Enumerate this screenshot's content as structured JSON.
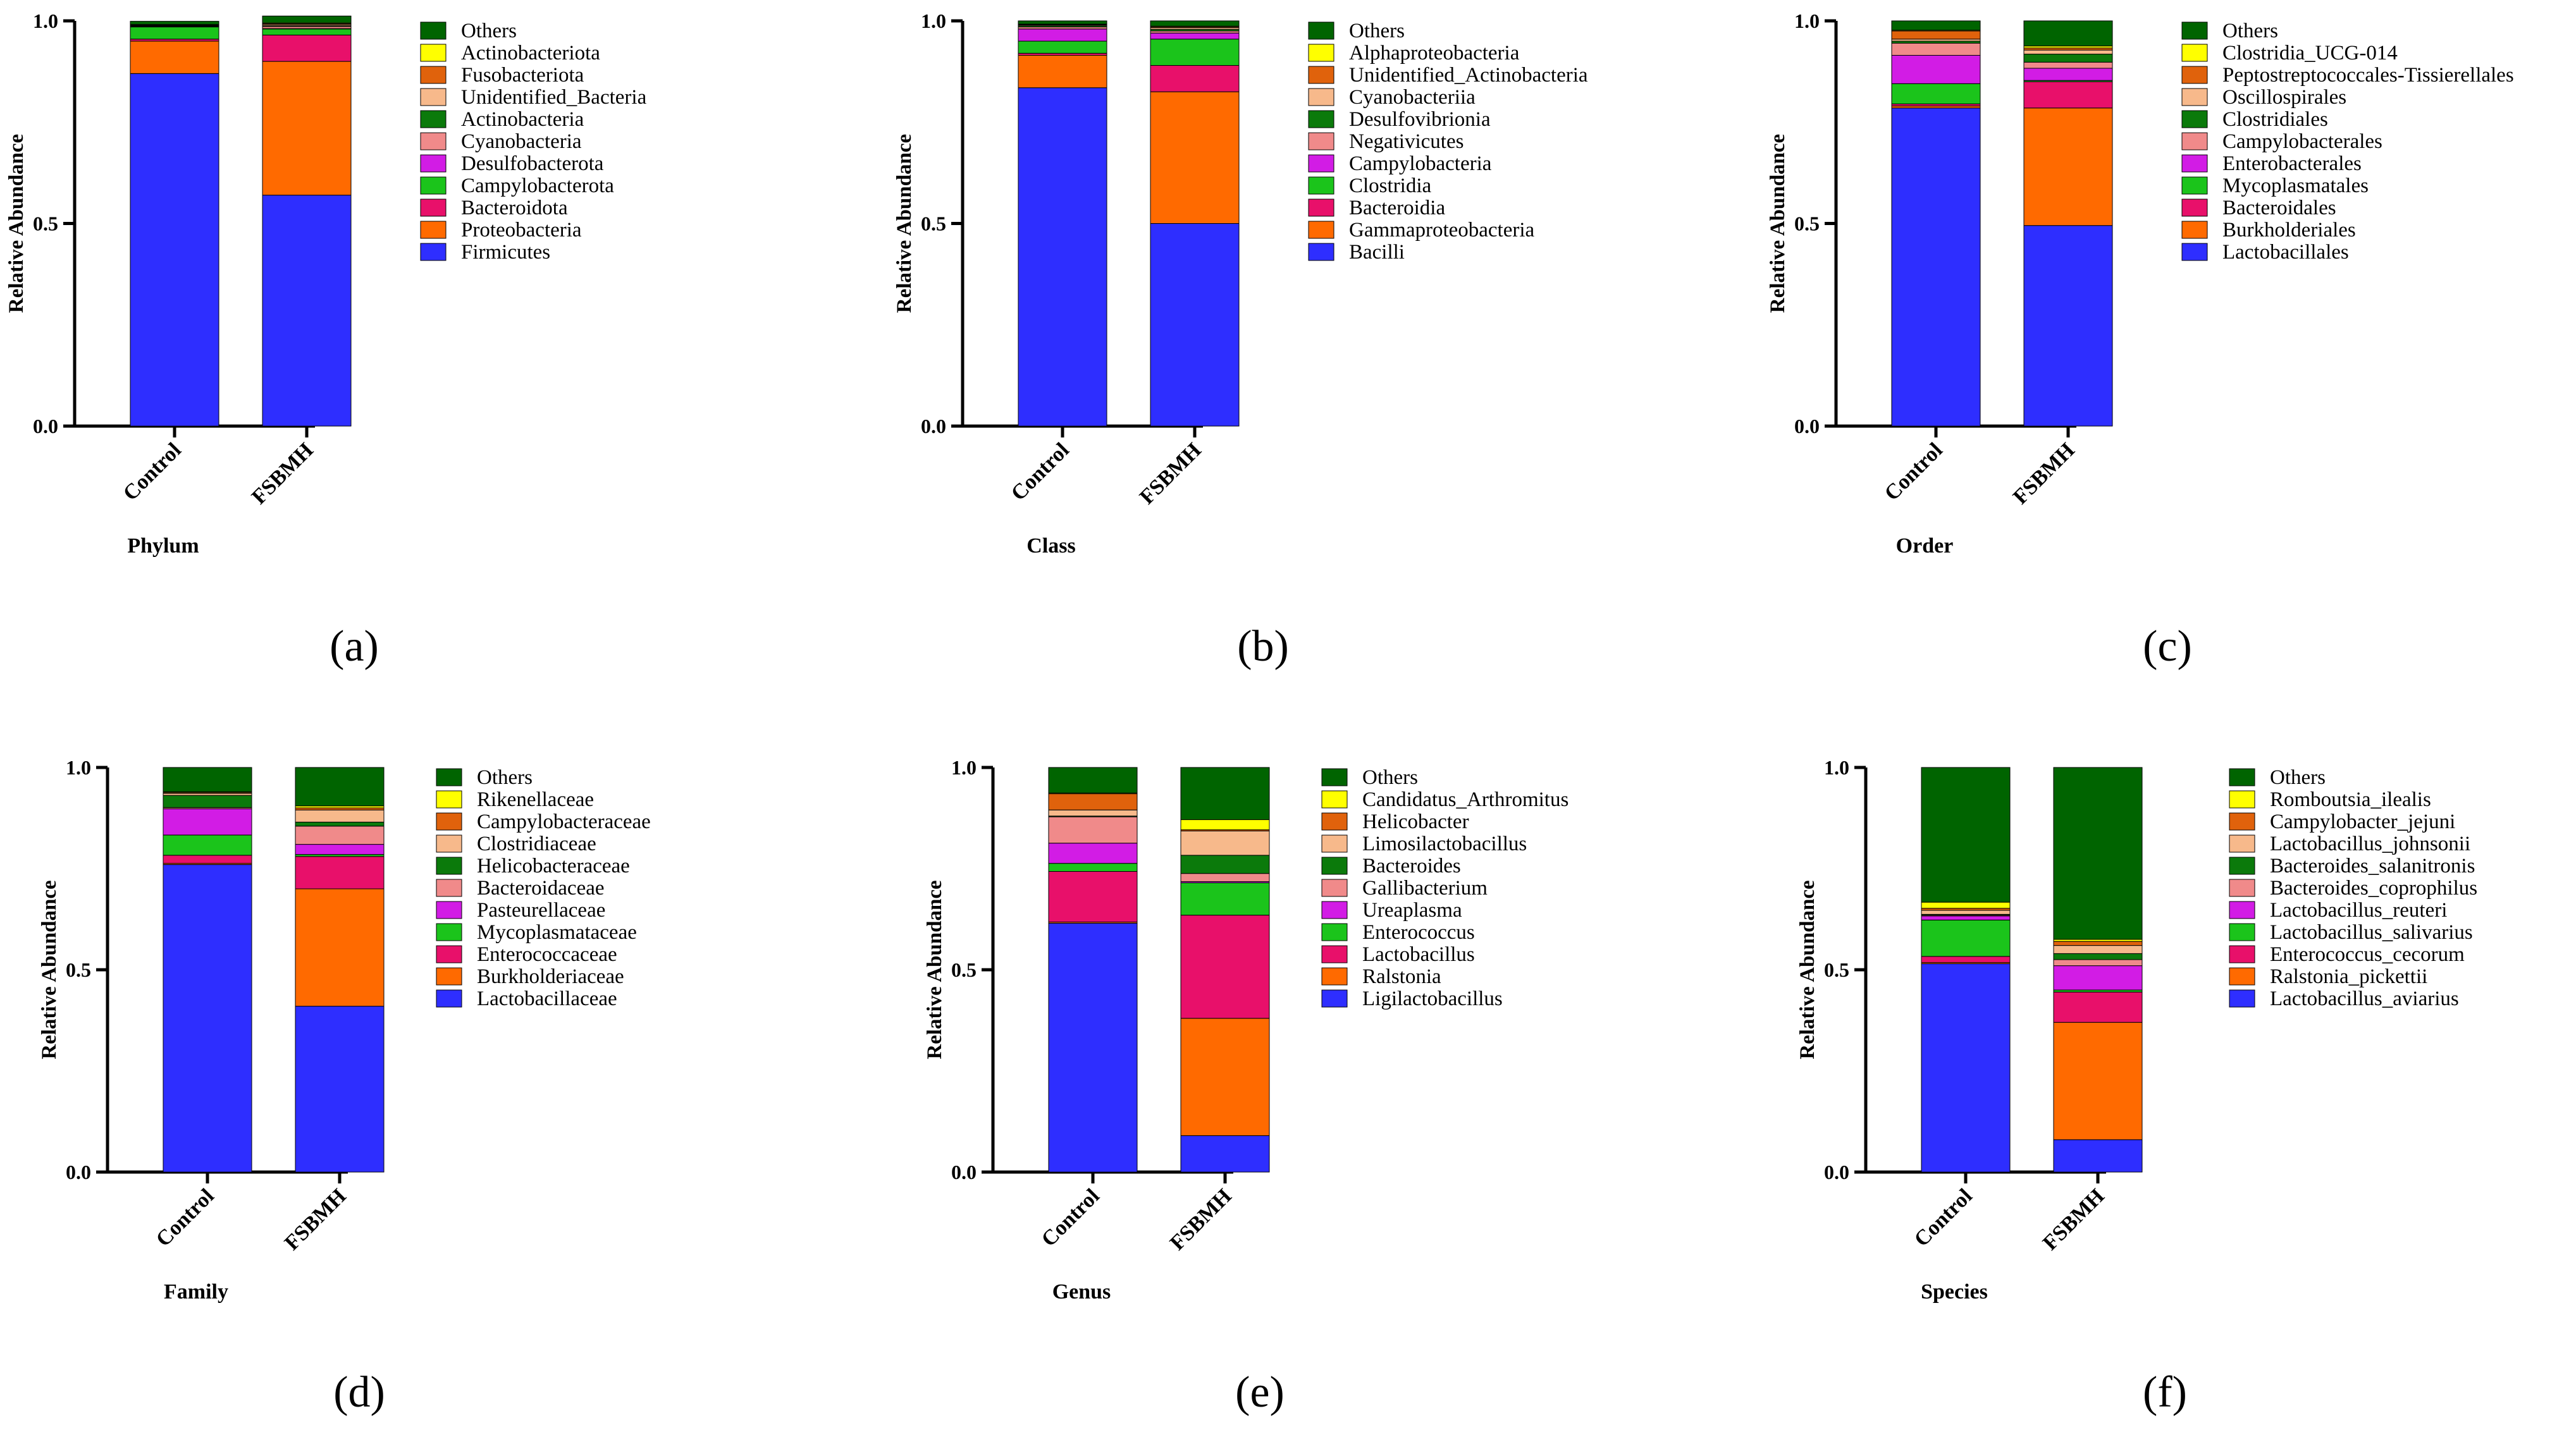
{
  "colors": {
    "Others": "#006400",
    "c10": "#FFFF00",
    "c9": "#E0620C",
    "c8": "#F7B98B",
    "c7": "#0B7A0B",
    "c6": "#F08A8A",
    "c5": "#D21CE5",
    "c4": "#1BC41B",
    "c3": "#E8106A",
    "c2": "#FF6A00",
    "c1": "#2E2EFF"
  },
  "y_ticks": [
    "0.0",
    "0.5",
    "1.0"
  ],
  "ylabel": "Relative Abundance",
  "chart_data": [
    {
      "type": "bar",
      "stacked": true,
      "panel_label": "(a)",
      "xlabel": "Phylum",
      "categories": [
        "Control",
        "FSBMH"
      ],
      "ylim": [
        0,
        1
      ],
      "series": [
        {
          "name": "Firmicutes",
          "values": [
            0.87,
            0.57
          ]
        },
        {
          "name": "Proteobacteria",
          "values": [
            0.08,
            0.33
          ]
        },
        {
          "name": "Bacteroidota",
          "values": [
            0.005,
            0.065
          ]
        },
        {
          "name": "Campylobacterota",
          "values": [
            0.03,
            0.015
          ]
        },
        {
          "name": "Desulfobacterota",
          "values": [
            0.001,
            0.001
          ]
        },
        {
          "name": "Cyanobacteria",
          "values": [
            0.001,
            0.005
          ]
        },
        {
          "name": "Actinobacteria",
          "values": [
            0.001,
            0.002
          ]
        },
        {
          "name": "Unidentified_Bacteria",
          "values": [
            0.001,
            0.003
          ]
        },
        {
          "name": "Fusobacteriota",
          "values": [
            0.001,
            0.002
          ]
        },
        {
          "name": "Actinobacteriota",
          "values": [
            0.001,
            0.002
          ]
        },
        {
          "name": "Others",
          "values": [
            0.008,
            0.017
          ]
        }
      ]
    },
    {
      "type": "bar",
      "stacked": true,
      "panel_label": "(b)",
      "xlabel": "Class",
      "categories": [
        "Control",
        "FSBMH"
      ],
      "ylim": [
        0,
        1
      ],
      "series": [
        {
          "name": "Bacilli",
          "values": [
            0.835,
            0.5
          ]
        },
        {
          "name": "Gammaproteobacteria",
          "values": [
            0.08,
            0.325
          ]
        },
        {
          "name": "Bacteroidia",
          "values": [
            0.005,
            0.065
          ]
        },
        {
          "name": "Clostridia",
          "values": [
            0.03,
            0.065
          ]
        },
        {
          "name": "Campylobacteria",
          "values": [
            0.03,
            0.015
          ]
        },
        {
          "name": "Negativicutes",
          "values": [
            0.005,
            0.005
          ]
        },
        {
          "name": "Desulfovibrionia",
          "values": [
            0.003,
            0.004
          ]
        },
        {
          "name": "Cyanobacteriia",
          "values": [
            0.002,
            0.004
          ]
        },
        {
          "name": "Unidentified_Actinobacteria",
          "values": [
            0.001,
            0.002
          ]
        },
        {
          "name": "Alphaproteobacteria",
          "values": [
            0.001,
            0.002
          ]
        },
        {
          "name": "Others",
          "values": [
            0.008,
            0.013
          ]
        }
      ]
    },
    {
      "type": "bar",
      "stacked": true,
      "panel_label": "(c)",
      "xlabel": "Order",
      "categories": [
        "Control",
        "FSBMH"
      ],
      "ylim": [
        0,
        1
      ],
      "series": [
        {
          "name": "Lactobacillales",
          "values": [
            0.785,
            0.495
          ]
        },
        {
          "name": "Burkholderiales",
          "values": [
            0.005,
            0.29
          ]
        },
        {
          "name": "Bacteroidales",
          "values": [
            0.005,
            0.065
          ]
        },
        {
          "name": "Mycoplasmatales",
          "values": [
            0.05,
            0.003
          ]
        },
        {
          "name": "Enterobacterales",
          "values": [
            0.07,
            0.03
          ]
        },
        {
          "name": "Campylobacterales",
          "values": [
            0.03,
            0.015
          ]
        },
        {
          "name": "Clostridiales",
          "values": [
            0.005,
            0.02
          ]
        },
        {
          "name": "Oscillospirales",
          "values": [
            0.005,
            0.01
          ]
        },
        {
          "name": "Peptostreptococcales-Tissierellales",
          "values": [
            0.02,
            0.005
          ]
        },
        {
          "name": "Clostridia_UCG-014",
          "values": [
            0.002,
            0.005
          ]
        },
        {
          "name": "Others",
          "values": [
            0.023,
            0.062
          ]
        }
      ]
    },
    {
      "type": "bar",
      "stacked": true,
      "panel_label": "(d)",
      "xlabel": "Family",
      "categories": [
        "Control",
        "FSBMH"
      ],
      "ylim": [
        0,
        1
      ],
      "series": [
        {
          "name": "Lactobacillaceae",
          "values": [
            0.76,
            0.41
          ]
        },
        {
          "name": "Burkholderiaceae",
          "values": [
            0.003,
            0.29
          ]
        },
        {
          "name": "Enterococcaceae",
          "values": [
            0.02,
            0.08
          ]
        },
        {
          "name": "Mycoplasmataceae",
          "values": [
            0.05,
            0.005
          ]
        },
        {
          "name": "Pasteurellaceae",
          "values": [
            0.065,
            0.025
          ]
        },
        {
          "name": "Bacteroidaceae",
          "values": [
            0.003,
            0.045
          ]
        },
        {
          "name": "Helicobacteraceae",
          "values": [
            0.03,
            0.01
          ]
        },
        {
          "name": "Clostridiaceae",
          "values": [
            0.005,
            0.03
          ]
        },
        {
          "name": "Campylobacteraceae",
          "values": [
            0.002,
            0.005
          ]
        },
        {
          "name": "Rikenellaceae",
          "values": [
            0.002,
            0.005
          ]
        },
        {
          "name": "Others",
          "values": [
            0.06,
            0.095
          ]
        }
      ]
    },
    {
      "type": "bar",
      "stacked": true,
      "panel_label": "(e)",
      "xlabel": "Genus",
      "categories": [
        "Control",
        "FSBMH"
      ],
      "ylim": [
        0,
        1
      ],
      "series": [
        {
          "name": "Ligilactobacillus",
          "values": [
            0.615,
            0.09
          ]
        },
        {
          "name": "Ralstonia",
          "values": [
            0.003,
            0.29
          ]
        },
        {
          "name": "Lactobacillus",
          "values": [
            0.125,
            0.255
          ]
        },
        {
          "name": "Enterococcus",
          "values": [
            0.02,
            0.08
          ]
        },
        {
          "name": "Ureaplasma",
          "values": [
            0.05,
            0.003
          ]
        },
        {
          "name": "Gallibacterium",
          "values": [
            0.065,
            0.02
          ]
        },
        {
          "name": "Bacteroides",
          "values": [
            0.002,
            0.045
          ]
        },
        {
          "name": "Limosilactobacillus",
          "values": [
            0.015,
            0.06
          ]
        },
        {
          "name": "Helicobacter",
          "values": [
            0.04,
            0.003
          ]
        },
        {
          "name": "Candidatus_Arthromitus",
          "values": [
            0.002,
            0.025
          ]
        },
        {
          "name": "Others",
          "values": [
            0.063,
            0.129
          ]
        }
      ]
    },
    {
      "type": "bar",
      "stacked": true,
      "panel_label": "(f)",
      "xlabel": "Species",
      "categories": [
        "Control",
        "FSBMH"
      ],
      "ylim": [
        0,
        1
      ],
      "series": [
        {
          "name": "Lactobacillus_aviarius",
          "values": [
            0.515,
            0.08
          ]
        },
        {
          "name": "Ralstonia_pickettii",
          "values": [
            0.003,
            0.29
          ]
        },
        {
          "name": "Enterococcus_cecorum",
          "values": [
            0.015,
            0.075
          ]
        },
        {
          "name": "Lactobacillus_salivarius",
          "values": [
            0.09,
            0.005
          ]
        },
        {
          "name": "Lactobacillus_reuteri",
          "values": [
            0.01,
            0.06
          ]
        },
        {
          "name": "Bacteroides_coprophilus",
          "values": [
            0.002,
            0.015
          ]
        },
        {
          "name": "Bacteroides_salanitronis",
          "values": [
            0.002,
            0.015
          ]
        },
        {
          "name": "Lactobacillus_johnsonii",
          "values": [
            0.01,
            0.02
          ]
        },
        {
          "name": "Campylobacter_jejuni",
          "values": [
            0.005,
            0.01
          ]
        },
        {
          "name": "Romboutsia_ilealis",
          "values": [
            0.015,
            0.005
          ]
        },
        {
          "name": "Others",
          "values": [
            0.333,
            0.425
          ]
        }
      ]
    }
  ]
}
